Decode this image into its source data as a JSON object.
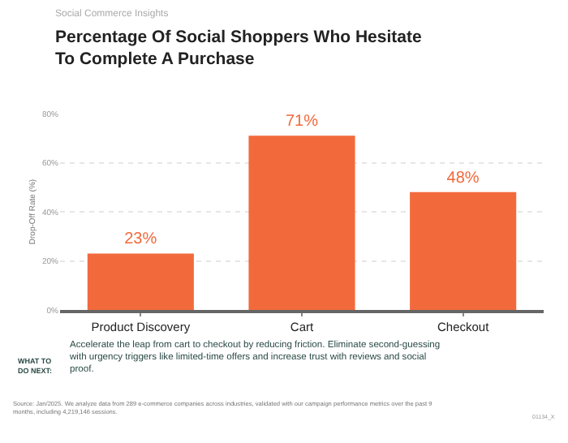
{
  "chart_data": {
    "type": "bar",
    "subtitle": "Social Commerce Insights",
    "title": "Percentage Of Social Shoppers Who Hesitate To Complete A Purchase",
    "ylabel": "Drop-Off Rate (%)",
    "categories": [
      "Product Discovery",
      "Cart",
      "Checkout"
    ],
    "values": [
      23,
      71,
      48
    ],
    "color": "#f26a3c",
    "value_labels": [
      "23%",
      "71%",
      "48%"
    ],
    "ylim": [
      0,
      80
    ],
    "yticks": [
      {
        "value": 0,
        "label": "0%"
      },
      {
        "value": 20,
        "label": "20%"
      },
      {
        "value": 40,
        "label": "40%"
      },
      {
        "value": 60,
        "label": "60%"
      },
      {
        "value": 80,
        "label": "80%"
      }
    ],
    "grid": "y",
    "annotations": [
      "WHAT TO DO NEXT:",
      "Accelerate the leap from cart to checkout by reducing friction. Eliminate second-guessing with urgency triggers like limited-time offers and increase trust with reviews and social proof.",
      "Source: Jan/2025. We analyze data from 289 e-commerce companies across industries, validated with our campaign performance metrics over the past 9 months, including 4,219,146 sessions.",
      "01134_X"
    ]
  }
}
